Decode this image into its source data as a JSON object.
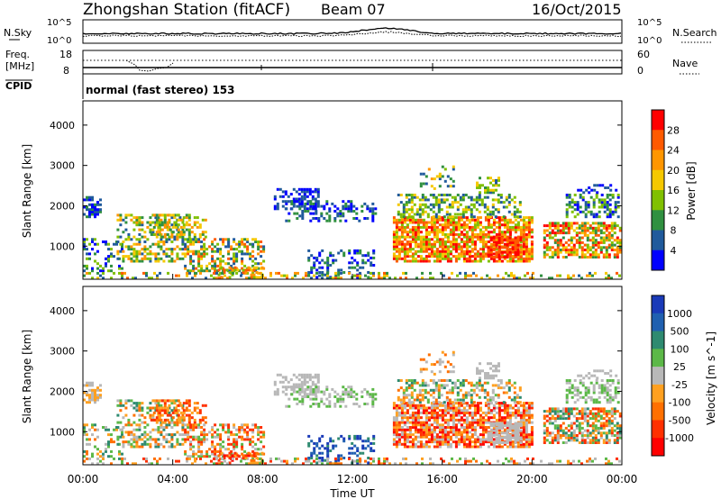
{
  "header": {
    "station": "Zhongshan Station (fitACF)",
    "beam": "Beam 07",
    "date": "16/Oct/2015"
  },
  "panels": {
    "nsky": {
      "left_label": "N.Sky",
      "left_ticks": [
        "10^5",
        "10^0"
      ],
      "right_ticks": [
        "10^5",
        "10^0"
      ],
      "right_label": "N.Search"
    },
    "freq": {
      "left_label_1": "Freq.",
      "left_label_2": "[MHz]",
      "left_ticks": [
        "18",
        "8"
      ],
      "right_ticks": [
        "60",
        "0"
      ],
      "right_label": "Nave"
    },
    "cpid": {
      "left_label": "CPID",
      "text": "normal (fast stereo) 153"
    }
  },
  "chart_data": [
    {
      "type": "heatmap",
      "name": "power",
      "ylabel": "Slant Range [km]",
      "yticks": [
        "4000",
        "3000",
        "2000",
        "1000"
      ],
      "ylim": [
        180,
        4600
      ],
      "xlim_hours": [
        0,
        24
      ],
      "colorbar": {
        "label": "Power [dB]",
        "ticks": [
          "28",
          "24",
          "20",
          "16",
          "12",
          "8",
          "4"
        ],
        "colors": [
          "#ff0000",
          "#ff5a00",
          "#ff9600",
          "#f5c800",
          "#80c000",
          "#309040",
          "#205a9c",
          "#0000ff"
        ]
      }
    },
    {
      "type": "heatmap",
      "name": "velocity",
      "ylabel": "Slant Range [km]",
      "yticks": [
        "4000",
        "3000",
        "2000",
        "1000"
      ],
      "ylim": [
        180,
        4600
      ],
      "xlim_hours": [
        0,
        24
      ],
      "xlabel": "Time UT",
      "xticks": [
        "00:00",
        "04:00",
        "08:00",
        "12:00",
        "16:00",
        "20:00",
        "00:00"
      ],
      "colorbar": {
        "label": "Velocity [m s^-1]",
        "ticks": [
          "1000",
          "500",
          "100",
          "25",
          "-25",
          "-100",
          "-500",
          "-1000"
        ],
        "colors": [
          "#1a3ab8",
          "#2060b0",
          "#2e8a70",
          "#5cb848",
          "#b8b8b8",
          "#ffa020",
          "#ff7000",
          "#ff3000",
          "#ff0000"
        ]
      }
    }
  ]
}
